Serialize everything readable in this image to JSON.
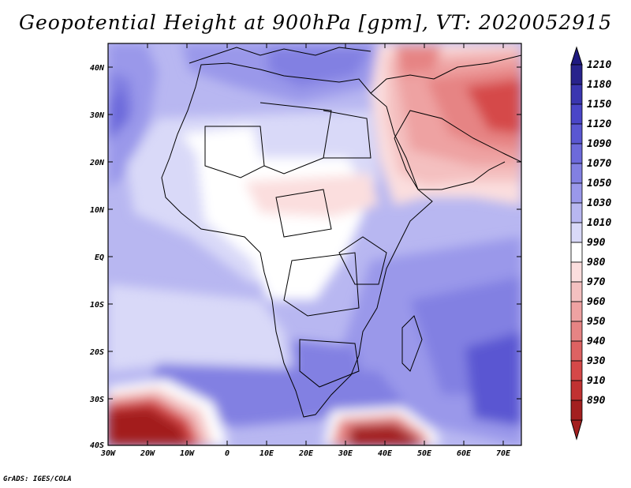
{
  "title": "Geopotential Height at 900hPa [gpm], VT: 2020052915",
  "credit": "GrADS: IGES/COLA",
  "map": {
    "lat_labels": [
      "40N",
      "30N",
      "20N",
      "10N",
      "EQ",
      "10S",
      "20S",
      "30S",
      "40S"
    ],
    "lon_labels": [
      "30W",
      "20W",
      "10W",
      "0",
      "10E",
      "20E",
      "30E",
      "40E",
      "50E",
      "60E",
      "70E"
    ]
  },
  "colorbar": {
    "labels": [
      "1210",
      "1180",
      "1150",
      "1120",
      "1090",
      "1070",
      "1050",
      "1030",
      "1010",
      "990",
      "980",
      "970",
      "960",
      "950",
      "940",
      "930",
      "910",
      "890"
    ],
    "colors": [
      "#28238c",
      "#3a36b0",
      "#4a46c8",
      "#5a57d2",
      "#6d6adb",
      "#8280e2",
      "#9a98ea",
      "#b8b7f1",
      "#d9d9f8",
      "#ffffff",
      "#fbdede",
      "#f4c0c0",
      "#eea2a2",
      "#e68484",
      "#dd6262",
      "#d54848",
      "#c13232",
      "#a31f1f"
    ],
    "top_arrow_color": "#1f1a80",
    "bottom_arrow_color": "#a31f1f"
  }
}
